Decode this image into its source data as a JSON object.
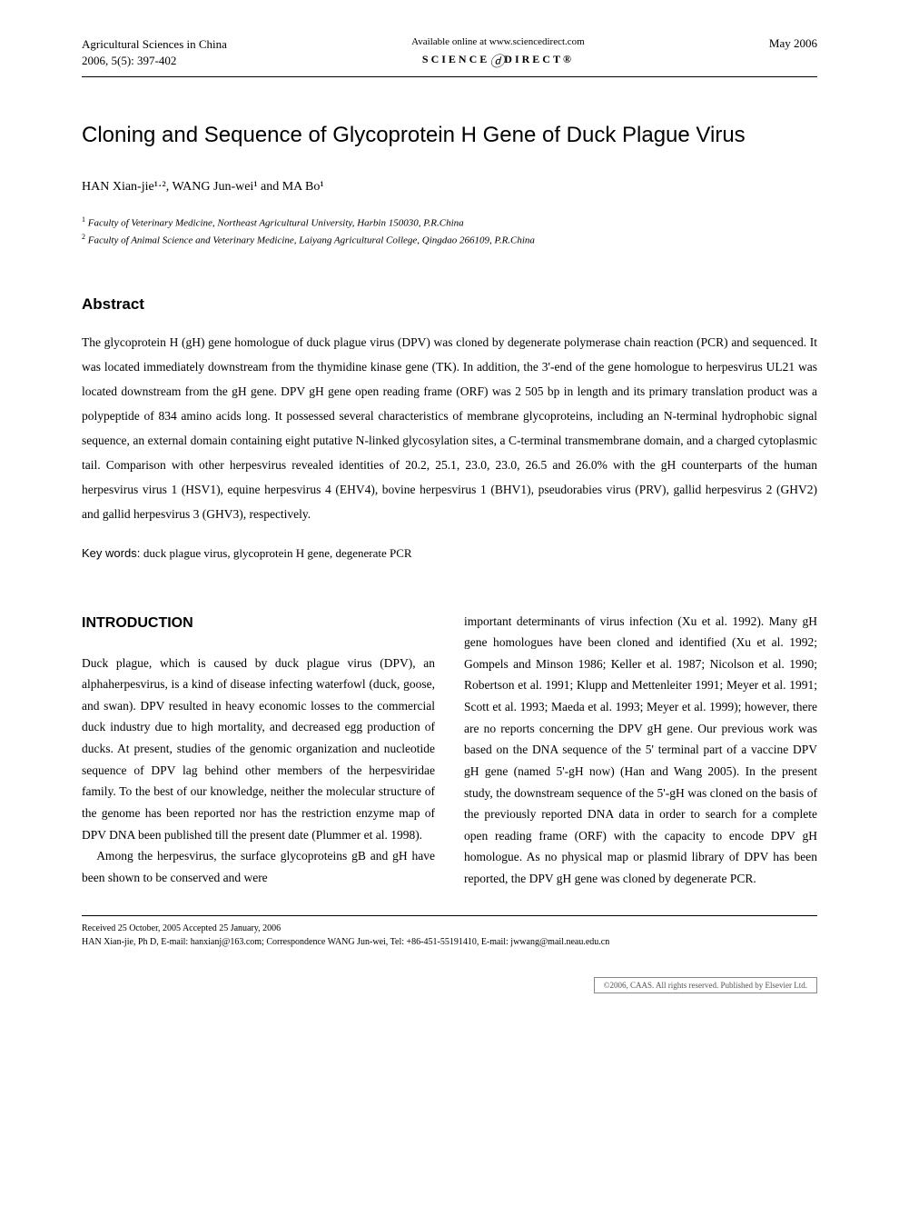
{
  "header": {
    "journal_name": "Agricultural Sciences in China",
    "citation": "2006, 5(5): 397-402",
    "online_text": "Available online at www.sciencedirect.com",
    "logo_left": "SCIENCE",
    "logo_right": "DIRECT®",
    "date": "May 2006"
  },
  "title": "Cloning and Sequence of Glycoprotein H Gene of Duck Plague Virus",
  "authors": "HAN Xian-jie¹·², WANG Jun-wei¹ and MA Bo¹",
  "affiliations": {
    "a1_sup": "1",
    "a1_text": " Faculty of Veterinary Medicine, Northeast Agricultural University, Harbin 150030, P.R.China",
    "a2_sup": "2",
    "a2_text": " Faculty of Animal Science and Veterinary Medicine, Laiyang Agricultural College, Qingdao 266109, P.R.China"
  },
  "abstract_heading": "Abstract",
  "abstract_text": "The glycoprotein H (gH) gene homologue of duck plague virus (DPV) was cloned by degenerate polymerase chain reaction (PCR) and sequenced. It was located immediately downstream from the thymidine kinase gene (TK). In addition, the 3'-end of the gene homologue to herpesvirus UL21 was located downstream from the gH gene. DPV gH gene open reading frame (ORF) was 2 505 bp in length and its primary translation product was a polypeptide of 834 amino acids long. It possessed several characteristics of membrane glycoproteins, including an N-terminal hydrophobic signal sequence, an external domain containing eight putative N-linked glycosylation sites, a C-terminal transmembrane domain, and a charged cytoplasmic tail. Comparison with other herpesvirus revealed identities of 20.2, 25.1, 23.0, 23.0, 26.5 and 26.0% with the gH counterparts of the human herpesvirus virus 1 (HSV1), equine herpesvirus 4 (EHV4), bovine herpesvirus 1 (BHV1), pseudorabies virus (PRV), gallid herpesvirus 2 (GHV2) and gallid herpesvirus 3 (GHV3), respectively.",
  "keywords_label": "Key words: ",
  "keywords_text": "duck plague virus, glycoprotein H gene, degenerate PCR",
  "introduction_heading": "INTRODUCTION",
  "intro_col1_p1": "Duck plague, which is caused by duck plague virus (DPV), an alphaherpesvirus, is a kind of disease infecting waterfowl (duck, goose, and swan). DPV resulted in heavy economic losses to the commercial duck industry due to high mortality, and decreased egg production of ducks. At present, studies of the genomic organization and nucleotide sequence of DPV lag behind other members of the herpesviridae family. To the best of our knowledge, neither the molecular structure of the genome has been reported nor has the restriction enzyme map of DPV DNA been published till the present date (Plummer et al. 1998).",
  "intro_col1_p2": "Among the herpesvirus, the surface glycoproteins gB and gH have been shown to be conserved and were",
  "intro_col2_p1": "important determinants of virus infection (Xu et al. 1992). Many gH gene homologues have been cloned and identified (Xu et al. 1992; Gompels and Minson 1986; Keller et al. 1987; Nicolson et al. 1990; Robertson et al. 1991; Klupp and Mettenleiter 1991; Meyer et al. 1991; Scott et al. 1993; Maeda et al. 1993; Meyer et al. 1999); however, there are no reports concerning the DPV gH gene. Our previous work was based on the DNA sequence of the 5' terminal part of a vaccine DPV gH gene (named 5'-gH now) (Han and Wang 2005). In the present study, the downstream sequence of the 5'-gH was cloned on the basis of the previously reported DNA data in order to search for a complete open reading frame (ORF) with the capacity to encode DPV gH homologue. As no physical map or plasmid library of DPV has been reported, the DPV gH gene was cloned by degenerate PCR.",
  "footer": {
    "received": "Received 25 October, 2005   Accepted 25 January, 2006",
    "correspondence": "HAN Xian-jie, Ph D, E-mail: hanxianj@163.com; Correspondence WANG Jun-wei, Tel: +86-451-55191410, E-mail: jwwang@mail.neau.edu.cn"
  },
  "copyright": "©2006, CAAS. All rights reserved. Published by Elsevier Ltd.",
  "colors": {
    "background": "#ffffff",
    "text": "#000000",
    "copyright_border": "#888888",
    "copyright_text": "#555555"
  },
  "typography": {
    "body_font": "Times New Roman",
    "heading_font": "Arial",
    "title_size": 24,
    "body_size": 13.5,
    "heading_size": 17
  }
}
